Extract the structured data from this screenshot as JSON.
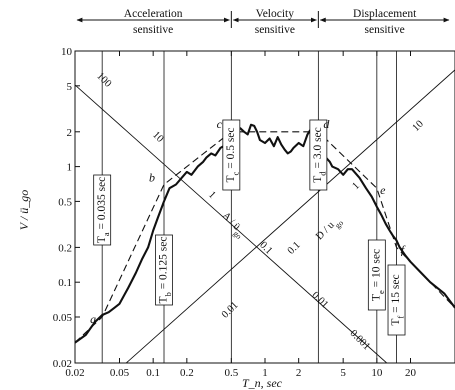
{
  "chart_data": {
    "type": "line",
    "xscale": "log",
    "yscale": "log",
    "xlim": [
      0.02,
      50
    ],
    "ylim": [
      0.02,
      10
    ],
    "xlabel": "T_n, sec",
    "ylabel": "V / ü_go",
    "x_ticks": [
      "0.02",
      "0.05",
      "0.1",
      "0.2",
      "0.5",
      "1",
      "2",
      "5",
      "10",
      "20"
    ],
    "x_tick_values": [
      0.02,
      0.05,
      0.1,
      0.2,
      0.5,
      1,
      2,
      5,
      10,
      20
    ],
    "y_ticks": [
      "0.02",
      "0.05",
      "0.1",
      "0.2",
      "0.5",
      "1",
      "2",
      "5",
      "10"
    ],
    "y_tick_values": [
      0.02,
      0.05,
      0.1,
      0.2,
      0.5,
      1,
      2,
      5,
      10
    ],
    "regions": [
      {
        "line1": "Acceleration",
        "line2": "sensitive",
        "x_from": 0.02,
        "x_to": 0.5
      },
      {
        "line1": "Velocity",
        "line2": "sensitive",
        "x_from": 0.5,
        "x_to": 3.0
      },
      {
        "line1": "Displacement",
        "line2": "sensitive",
        "x_from": 3.0,
        "x_to": 50
      }
    ],
    "series": [
      {
        "role": "spectrum",
        "x": [
          0.02,
          0.025,
          0.03,
          0.035,
          0.04,
          0.045,
          0.05,
          0.06,
          0.07,
          0.08,
          0.09,
          0.1,
          0.11,
          0.125,
          0.14,
          0.16,
          0.18,
          0.2,
          0.22,
          0.25,
          0.28,
          0.3,
          0.33,
          0.36,
          0.4,
          0.45,
          0.5,
          0.55,
          0.6,
          0.65,
          0.7,
          0.75,
          0.8,
          0.85,
          0.9,
          1.0,
          1.1,
          1.2,
          1.3,
          1.4,
          1.5,
          1.6,
          1.7,
          1.8,
          2.0,
          2.2,
          2.4,
          2.6,
          2.8,
          3.0,
          3.2,
          3.5,
          3.8,
          4.0,
          4.5,
          5.0,
          5.5,
          6.0,
          7.0,
          8.0,
          9.0,
          10,
          11,
          12,
          13,
          14,
          15,
          16,
          18,
          20,
          25,
          30,
          40,
          50
        ],
        "y": [
          0.03,
          0.035,
          0.045,
          0.052,
          0.055,
          0.06,
          0.065,
          0.09,
          0.12,
          0.16,
          0.2,
          0.28,
          0.36,
          0.5,
          0.65,
          0.7,
          0.8,
          0.9,
          0.85,
          1.0,
          1.1,
          1.2,
          1.3,
          1.25,
          1.45,
          1.55,
          2.0,
          2.2,
          2.15,
          2.0,
          1.9,
          2.3,
          2.25,
          2.0,
          1.7,
          1.6,
          1.75,
          1.5,
          1.8,
          1.55,
          1.4,
          1.3,
          1.35,
          1.45,
          1.6,
          1.5,
          1.9,
          2.15,
          2.0,
          1.8,
          1.5,
          1.2,
          1.1,
          1.0,
          0.95,
          0.85,
          0.95,
          0.95,
          0.8,
          0.65,
          0.55,
          0.45,
          0.38,
          0.32,
          0.28,
          0.25,
          0.23,
          0.2,
          0.17,
          0.15,
          0.12,
          0.1,
          0.08,
          0.06
        ]
      },
      {
        "role": "idealized",
        "style": "dashed",
        "x": [
          0.02,
          0.035,
          0.125,
          0.5,
          3.0,
          10,
          15,
          50
        ],
        "y": [
          0.03,
          0.05,
          0.7,
          2.0,
          2.0,
          0.65,
          0.2,
          0.06
        ]
      }
    ],
    "points": [
      {
        "label": "a",
        "x": 0.035,
        "y": 0.05
      },
      {
        "label": "b",
        "x": 0.125,
        "y": 0.7
      },
      {
        "label": "c",
        "x": 0.5,
        "y": 2.0
      },
      {
        "label": "d",
        "x": 3.0,
        "y": 2.0
      },
      {
        "label": "e",
        "x": 10,
        "y": 0.65
      },
      {
        "label": "f",
        "x": 15,
        "y": 0.2
      }
    ],
    "periods": [
      {
        "text": "T_a = 0.035 sec",
        "x": 0.035
      },
      {
        "text": "T_b = 0.125 sec",
        "x": 0.125
      },
      {
        "text": "T_c = 0.5 sec",
        "x": 0.5
      },
      {
        "text": "T_d = 3.0 sec",
        "x": 3.0
      },
      {
        "text": "T_e = 10 sec",
        "x": 10
      },
      {
        "text": "T_f = 15 sec",
        "x": 15
      }
    ],
    "diagonal_axes": [
      {
        "name": "A / ü_go",
        "ticks": [
          "100",
          "10",
          "1",
          "0.1",
          "0.01",
          "0.001"
        ]
      },
      {
        "name": "D / u_go",
        "ticks": [
          "10",
          "1",
          "0.1",
          "0.01"
        ]
      }
    ]
  }
}
